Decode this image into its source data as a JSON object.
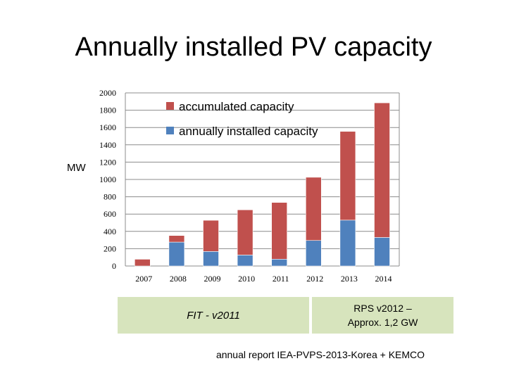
{
  "title": "Annually installed PV capacity",
  "chart_data": {
    "type": "bar",
    "stacked": true,
    "ylabel": "MW",
    "ylim": [
      0,
      2000
    ],
    "yticks": [
      0,
      200,
      400,
      600,
      800,
      1000,
      1200,
      1400,
      1600,
      1800,
      2000
    ],
    "categories": [
      "2007",
      "2008",
      "2009",
      "2010",
      "2011",
      "2012",
      "2013",
      "2014"
    ],
    "series": [
      {
        "name": "annually installed capacity",
        "color": "#4f81bd",
        "values": [
          0,
          276,
          168,
          127,
          79,
          295,
          530,
          330
        ]
      },
      {
        "name": "accumulated capacity",
        "color": "#c0504d",
        "values": [
          78,
          76,
          360,
          522,
          655,
          730,
          1025,
          1555
        ]
      }
    ],
    "legend": [
      {
        "label": "accumulated capacity",
        "color": "#c0504d"
      },
      {
        "label": "annually installed capacity",
        "color": "#4f81bd"
      }
    ]
  },
  "annotations": {
    "fit": "FIT  - v2011",
    "rps": "RPS  v2012 –\nApprox. 1,2 GW"
  },
  "source": "annual report IEA-PVPS-2013-Korea + KEMCO"
}
